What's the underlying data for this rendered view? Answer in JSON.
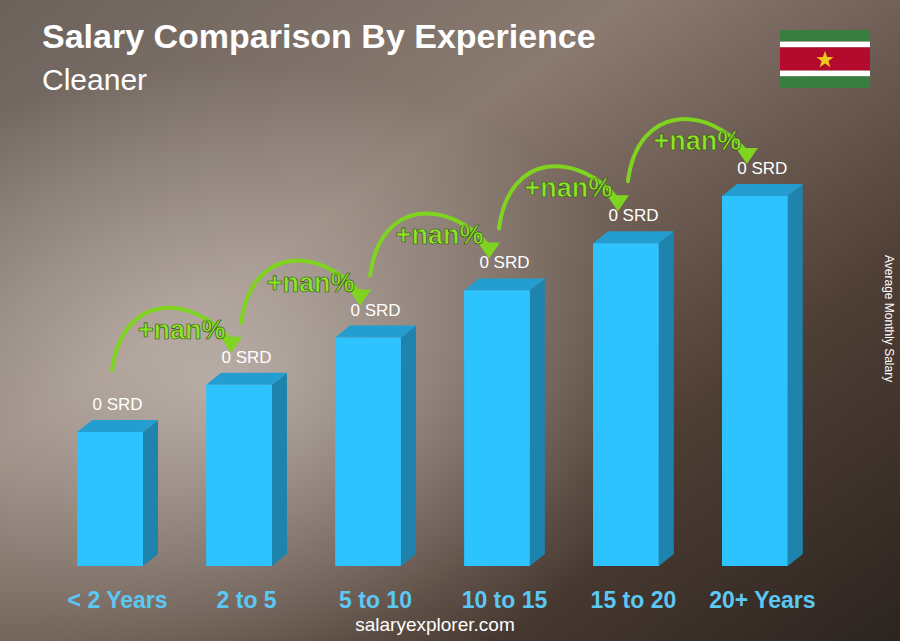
{
  "chart_data": {
    "type": "bar",
    "title": "Salary Comparison By Experience",
    "subtitle": "Cleaner",
    "categories": [
      "< 2 Years",
      "2 to 5",
      "5 to 10",
      "10 to 15",
      "15 to 20",
      "20+ Years"
    ],
    "values": [
      0,
      0,
      0,
      0,
      0,
      0
    ],
    "value_labels": [
      "0 SRD",
      "0 SRD",
      "0 SRD",
      "0 SRD",
      "0 SRD",
      "0 SRD"
    ],
    "data_labels": true,
    "annotations": [
      "+nan%",
      "+nan%",
      "+nan%",
      "+nan%",
      "+nan%"
    ],
    "y_label": "Average Monthly Salary",
    "source": "salaryexplorer.com",
    "color": "#29b6f0",
    "tick_labels": "x"
  }
}
